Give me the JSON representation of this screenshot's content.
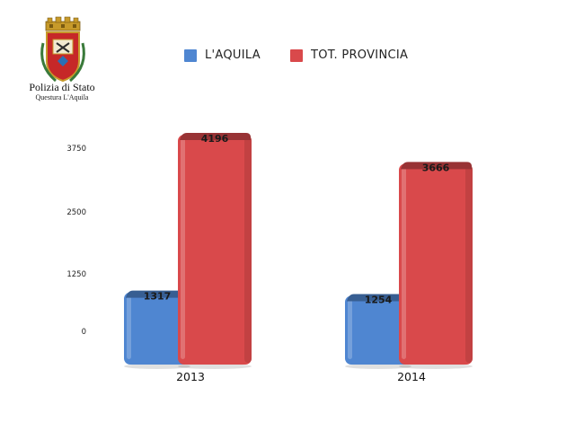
{
  "logo": {
    "title": "Polizia di Stato",
    "subtitle": "Questura L'Aquila",
    "icon": "police-crest-icon"
  },
  "chart_data": {
    "type": "bar",
    "categories": [
      "2013",
      "2014"
    ],
    "series": [
      {
        "name": "L'AQUILA",
        "values": [
          1317,
          1254
        ],
        "color": "#4f86d1"
      },
      {
        "name": "TOT. PROVINCIA",
        "values": [
          4196,
          3666
        ],
        "color": "#d9494b"
      }
    ],
    "yticks": [
      0,
      1250,
      2500,
      3750
    ],
    "ylim": [
      0,
      4196
    ],
    "legend_position": "top",
    "grid": false
  }
}
